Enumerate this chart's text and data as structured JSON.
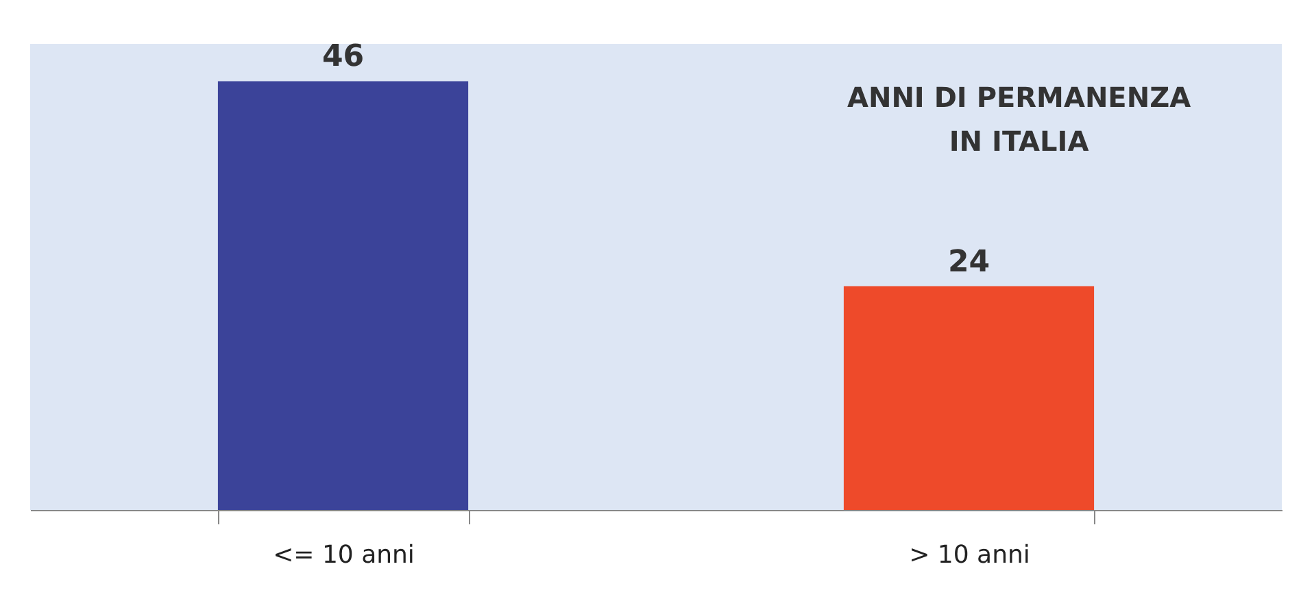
{
  "chart_data": {
    "type": "bar",
    "title": "ANNI DI PERMANENZA\nIN ITALIA",
    "categories": [
      "<= 10 anni",
      "> 10 anni"
    ],
    "values": [
      46,
      24
    ],
    "colors": [
      "#3b4399",
      "#ee4a2a"
    ],
    "ylim": [
      0,
      50
    ],
    "data_labels": true,
    "tick_labels": "x",
    "grid": false
  }
}
